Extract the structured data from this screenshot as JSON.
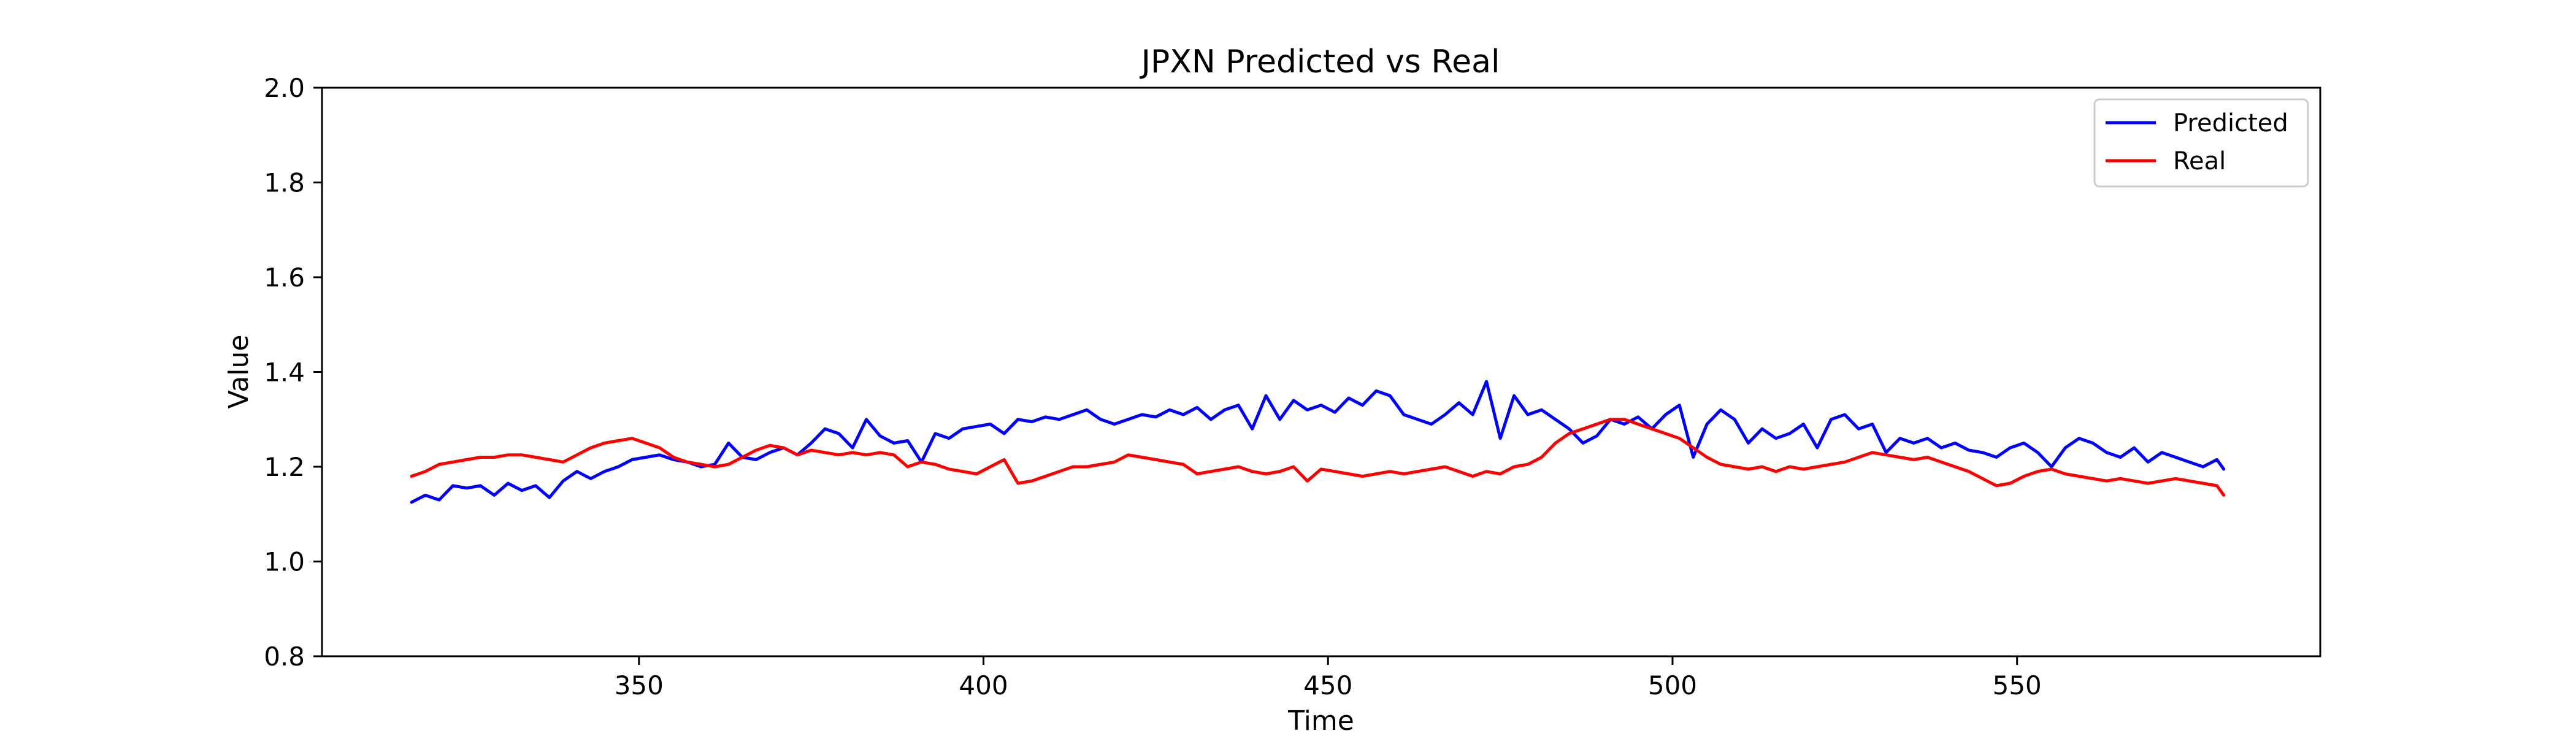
{
  "chart_data": {
    "type": "line",
    "title": "JPXN Predicted vs Real",
    "xlabel": "Time",
    "ylabel": "Value",
    "xlim": [
      304,
      594
    ],
    "ylim": [
      0.8,
      2.0
    ],
    "xticks": [
      350,
      400,
      450,
      500,
      550
    ],
    "yticks": [
      0.8,
      1.0,
      1.2,
      1.4,
      1.6,
      1.8,
      2.0
    ],
    "grid": false,
    "legend_position": "top-right",
    "series": [
      {
        "name": "Predicted",
        "color": "#0000ff",
        "x": [
          317,
          319,
          321,
          323,
          325,
          327,
          329,
          331,
          333,
          335,
          337,
          339,
          341,
          343,
          345,
          347,
          349,
          351,
          353,
          355,
          357,
          359,
          361,
          363,
          365,
          367,
          369,
          371,
          373,
          375,
          377,
          379,
          381,
          383,
          385,
          387,
          389,
          391,
          393,
          395,
          397,
          399,
          401,
          403,
          405,
          407,
          409,
          411,
          413,
          415,
          417,
          419,
          421,
          423,
          425,
          427,
          429,
          431,
          433,
          435,
          437,
          439,
          441,
          443,
          445,
          447,
          449,
          451,
          453,
          455,
          457,
          459,
          461,
          463,
          465,
          467,
          469,
          471,
          473,
          475,
          477,
          479,
          481,
          483,
          485,
          487,
          489,
          491,
          493,
          495,
          497,
          499,
          501,
          503,
          505,
          507,
          509,
          511,
          513,
          515,
          517,
          519,
          521,
          523,
          525,
          527,
          529,
          531,
          533,
          535,
          537,
          539,
          541,
          543,
          545,
          547,
          549,
          551,
          553,
          555,
          557,
          559,
          561,
          563,
          565,
          567,
          569,
          571,
          573,
          575,
          577,
          579,
          580
        ],
        "values": [
          1.125,
          1.14,
          1.13,
          1.16,
          1.155,
          1.16,
          1.14,
          1.165,
          1.15,
          1.16,
          1.135,
          1.17,
          1.19,
          1.175,
          1.19,
          1.2,
          1.215,
          1.22,
          1.225,
          1.215,
          1.21,
          1.2,
          1.205,
          1.25,
          1.22,
          1.215,
          1.23,
          1.24,
          1.225,
          1.25,
          1.28,
          1.27,
          1.24,
          1.3,
          1.265,
          1.25,
          1.255,
          1.21,
          1.27,
          1.26,
          1.28,
          1.285,
          1.29,
          1.27,
          1.3,
          1.295,
          1.305,
          1.3,
          1.31,
          1.32,
          1.3,
          1.29,
          1.3,
          1.31,
          1.305,
          1.32,
          1.31,
          1.325,
          1.3,
          1.32,
          1.33,
          1.28,
          1.35,
          1.3,
          1.34,
          1.32,
          1.33,
          1.315,
          1.345,
          1.33,
          1.36,
          1.35,
          1.31,
          1.3,
          1.29,
          1.31,
          1.335,
          1.31,
          1.38,
          1.26,
          1.35,
          1.31,
          1.32,
          1.3,
          1.28,
          1.25,
          1.265,
          1.3,
          1.29,
          1.305,
          1.28,
          1.31,
          1.33,
          1.22,
          1.29,
          1.32,
          1.3,
          1.25,
          1.28,
          1.26,
          1.27,
          1.29,
          1.24,
          1.3,
          1.31,
          1.28,
          1.29,
          1.23,
          1.26,
          1.25,
          1.26,
          1.24,
          1.25,
          1.235,
          1.23,
          1.22,
          1.24,
          1.25,
          1.23,
          1.2,
          1.24,
          1.26,
          1.25,
          1.23,
          1.22,
          1.24,
          1.21,
          1.23,
          1.22,
          1.21,
          1.2,
          1.215,
          1.195
        ]
      },
      {
        "name": "Real",
        "color": "#ff0000",
        "x": [
          317,
          319,
          321,
          323,
          325,
          327,
          329,
          331,
          333,
          335,
          337,
          339,
          341,
          343,
          345,
          347,
          349,
          351,
          353,
          355,
          357,
          359,
          361,
          363,
          365,
          367,
          369,
          371,
          373,
          375,
          377,
          379,
          381,
          383,
          385,
          387,
          389,
          391,
          393,
          395,
          397,
          399,
          401,
          403,
          405,
          407,
          409,
          411,
          413,
          415,
          417,
          419,
          421,
          423,
          425,
          427,
          429,
          431,
          433,
          435,
          437,
          439,
          441,
          443,
          445,
          447,
          449,
          451,
          453,
          455,
          457,
          459,
          461,
          463,
          465,
          467,
          469,
          471,
          473,
          475,
          477,
          479,
          481,
          483,
          485,
          487,
          489,
          491,
          493,
          495,
          497,
          499,
          501,
          503,
          505,
          507,
          509,
          511,
          513,
          515,
          517,
          519,
          521,
          523,
          525,
          527,
          529,
          531,
          533,
          535,
          537,
          539,
          541,
          543,
          545,
          547,
          549,
          551,
          553,
          555,
          557,
          559,
          561,
          563,
          565,
          567,
          569,
          571,
          573,
          575,
          577,
          579,
          580
        ],
        "values": [
          1.18,
          1.19,
          1.205,
          1.21,
          1.215,
          1.22,
          1.22,
          1.225,
          1.225,
          1.22,
          1.215,
          1.21,
          1.225,
          1.24,
          1.25,
          1.255,
          1.26,
          1.25,
          1.24,
          1.22,
          1.21,
          1.205,
          1.2,
          1.205,
          1.22,
          1.235,
          1.245,
          1.24,
          1.225,
          1.235,
          1.23,
          1.225,
          1.23,
          1.225,
          1.23,
          1.225,
          1.2,
          1.21,
          1.205,
          1.195,
          1.19,
          1.185,
          1.2,
          1.215,
          1.165,
          1.17,
          1.18,
          1.19,
          1.2,
          1.2,
          1.205,
          1.21,
          1.225,
          1.22,
          1.215,
          1.21,
          1.205,
          1.185,
          1.19,
          1.195,
          1.2,
          1.19,
          1.185,
          1.19,
          1.2,
          1.17,
          1.195,
          1.19,
          1.185,
          1.18,
          1.185,
          1.19,
          1.185,
          1.19,
          1.195,
          1.2,
          1.19,
          1.18,
          1.19,
          1.185,
          1.2,
          1.205,
          1.22,
          1.25,
          1.27,
          1.28,
          1.29,
          1.3,
          1.3,
          1.29,
          1.28,
          1.27,
          1.26,
          1.24,
          1.22,
          1.205,
          1.2,
          1.195,
          1.2,
          1.19,
          1.2,
          1.195,
          1.2,
          1.205,
          1.21,
          1.22,
          1.23,
          1.225,
          1.22,
          1.215,
          1.22,
          1.21,
          1.2,
          1.19,
          1.175,
          1.16,
          1.165,
          1.18,
          1.19,
          1.195,
          1.185,
          1.18,
          1.175,
          1.17,
          1.175,
          1.17,
          1.165,
          1.17,
          1.175,
          1.17,
          1.165,
          1.16,
          1.14
        ]
      }
    ]
  }
}
